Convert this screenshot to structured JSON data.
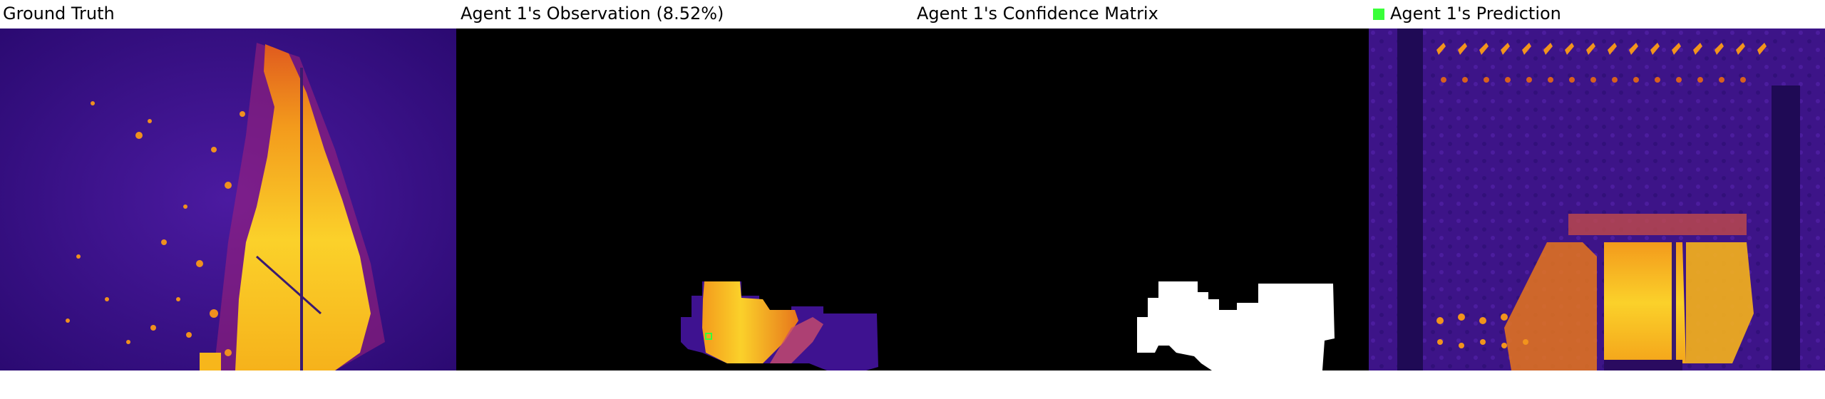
{
  "panels": [
    {
      "title": "Ground Truth"
    },
    {
      "title": "Agent 1's Observation (8.52%)"
    },
    {
      "title": "Agent 1's Confidence Matrix"
    },
    {
      "title": "Agent 1's Prediction",
      "legend_color": "#39ff39"
    }
  ],
  "colors": {
    "background_purple": "#3a0e8c",
    "fire_yellow": "#f8c81a",
    "fire_orange": "#e7761b",
    "mask_white": "#ffffff",
    "mask_black": "#000000",
    "marker_green": "#39ff39"
  }
}
